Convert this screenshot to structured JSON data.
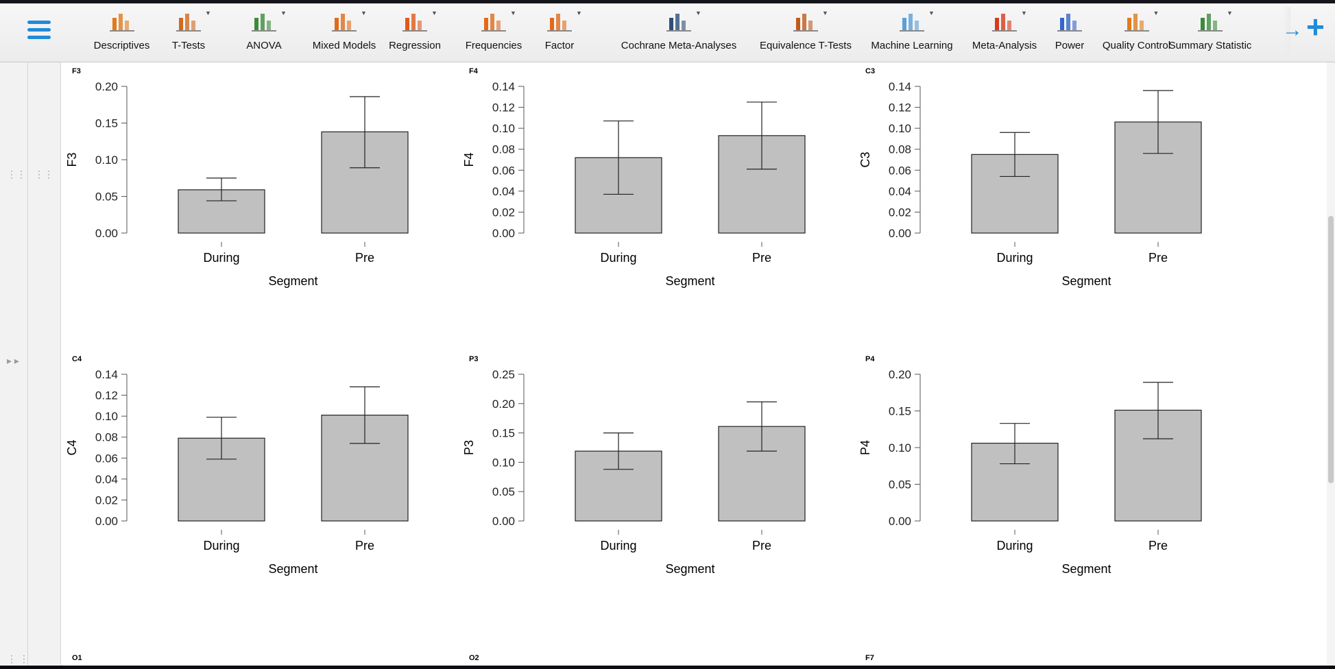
{
  "ribbon": {
    "modules": [
      {
        "label": "Descriptives",
        "icon": "descriptives-icon",
        "caret": false
      },
      {
        "label": "T-Tests",
        "icon": "t-tests-icon",
        "caret": true
      },
      {
        "label": "ANOVA",
        "icon": "anova-icon",
        "caret": true
      },
      {
        "label": "Mixed Models",
        "icon": "mixed-models-icon",
        "caret": true
      },
      {
        "label": "Regression",
        "icon": "regression-icon",
        "caret": true
      },
      {
        "label": "Frequencies",
        "icon": "frequencies-icon",
        "caret": true
      },
      {
        "label": "Factor",
        "icon": "factor-icon",
        "caret": true
      },
      {
        "label": "Cochrane Meta-Analyses",
        "icon": "cochrane-icon",
        "caret": true
      },
      {
        "label": "Equivalence T-Tests",
        "icon": "equivalence-icon",
        "caret": true
      },
      {
        "label": "Machine Learning",
        "icon": "machine-learning-icon",
        "caret": true
      },
      {
        "label": "Meta-Analysis",
        "icon": "meta-analysis-icon",
        "caret": true
      },
      {
        "label": "Power",
        "icon": "power-icon",
        "caret": false
      },
      {
        "label": "Quality Control",
        "icon": "quality-control-icon",
        "caret": true
      },
      {
        "label": "Summary Statistic",
        "icon": "summary-statistics-icon",
        "caret": true
      }
    ],
    "arrow": "→",
    "plus": "+"
  },
  "colors": {
    "accent": "#1f8bd9",
    "bar": "#c0c0c0",
    "ribbon": "#efefef"
  },
  "chart_data": [
    {
      "type": "bar",
      "title": "F3",
      "categories": [
        "During",
        "Pre"
      ],
      "values": [
        0.059,
        0.138
      ],
      "error_low": [
        0.044,
        0.089
      ],
      "error_high": [
        0.075,
        0.186
      ],
      "xlabel": "Segment",
      "ylabel": "F3",
      "ylim": [
        0,
        0.2
      ],
      "yticks": [
        "0.00",
        "0.05",
        "0.10",
        "0.15",
        "0.20"
      ]
    },
    {
      "type": "bar",
      "title": "F4",
      "categories": [
        "During",
        "Pre"
      ],
      "values": [
        0.072,
        0.093
      ],
      "error_low": [
        0.037,
        0.061
      ],
      "error_high": [
        0.107,
        0.125
      ],
      "xlabel": "Segment",
      "ylabel": "F4",
      "ylim": [
        0,
        0.14
      ],
      "yticks": [
        "0.00",
        "0.02",
        "0.04",
        "0.06",
        "0.08",
        "0.10",
        "0.12",
        "0.14"
      ]
    },
    {
      "type": "bar",
      "title": "C3",
      "categories": [
        "During",
        "Pre"
      ],
      "values": [
        0.075,
        0.106
      ],
      "error_low": [
        0.054,
        0.076
      ],
      "error_high": [
        0.096,
        0.136
      ],
      "xlabel": "Segment",
      "ylabel": "C3",
      "ylim": [
        0,
        0.14
      ],
      "yticks": [
        "0.00",
        "0.02",
        "0.04",
        "0.06",
        "0.08",
        "0.10",
        "0.12",
        "0.14"
      ]
    },
    {
      "type": "bar",
      "title": "C4",
      "categories": [
        "During",
        "Pre"
      ],
      "values": [
        0.079,
        0.101
      ],
      "error_low": [
        0.059,
        0.074
      ],
      "error_high": [
        0.099,
        0.128
      ],
      "xlabel": "Segment",
      "ylabel": "C4",
      "ylim": [
        0,
        0.14
      ],
      "yticks": [
        "0.00",
        "0.02",
        "0.04",
        "0.06",
        "0.08",
        "0.10",
        "0.12",
        "0.14"
      ]
    },
    {
      "type": "bar",
      "title": "P3",
      "categories": [
        "During",
        "Pre"
      ],
      "values": [
        0.119,
        0.161
      ],
      "error_low": [
        0.088,
        0.119
      ],
      "error_high": [
        0.15,
        0.203
      ],
      "xlabel": "Segment",
      "ylabel": "P3",
      "ylim": [
        0,
        0.25
      ],
      "yticks": [
        "0.00",
        "0.05",
        "0.10",
        "0.15",
        "0.20",
        "0.25"
      ]
    },
    {
      "type": "bar",
      "title": "P4",
      "categories": [
        "During",
        "Pre"
      ],
      "values": [
        0.106,
        0.151
      ],
      "error_low": [
        0.078,
        0.112
      ],
      "error_high": [
        0.133,
        0.189
      ],
      "xlabel": "Segment",
      "ylabel": "P4",
      "ylim": [
        0,
        0.2
      ],
      "yticks": [
        "0.00",
        "0.05",
        "0.10",
        "0.15",
        "0.20"
      ]
    }
  ],
  "more_plots": [
    "O1",
    "O2",
    "F7"
  ]
}
